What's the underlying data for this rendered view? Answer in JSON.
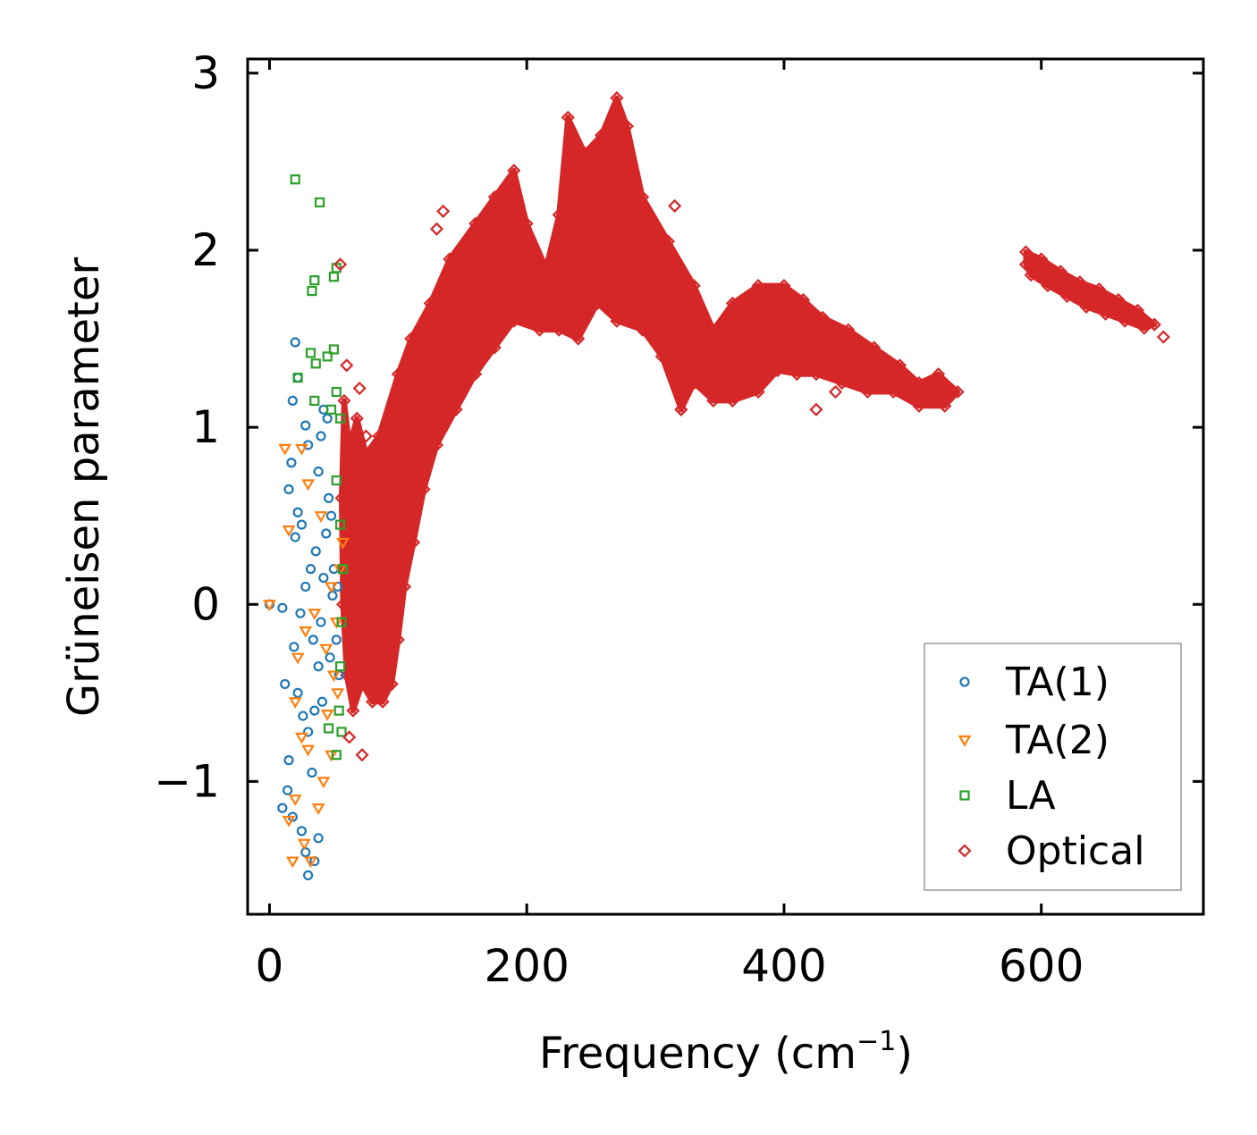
{
  "chart_data": {
    "type": "scatter",
    "xlabel": "Frequency (cm",
    "xlabel_sup": "−1",
    "xlabel_close": ")",
    "ylabel": "Grüneisen parameter",
    "xlim": [
      -17,
      726
    ],
    "ylim": [
      -1.75,
      3.08
    ],
    "x_ticks": [
      0,
      200,
      400,
      600
    ],
    "x_tick_labels": [
      "0",
      "200",
      "400",
      "600"
    ],
    "y_ticks": [
      -1,
      0,
      1,
      2,
      3
    ],
    "y_tick_labels": [
      "−1",
      "0",
      "1",
      "2",
      "3"
    ],
    "legend_position": "lower-right",
    "series": [
      {
        "name": "TA(1)",
        "label": "TA(1)",
        "marker": "circle",
        "color": "#1f77b4",
        "points": [
          [
            0,
            0
          ],
          [
            10,
            -0.02
          ],
          [
            20,
            1.48
          ],
          [
            18,
            1.15
          ],
          [
            22,
            1.28
          ],
          [
            28,
            1.01
          ],
          [
            30,
            0.9
          ],
          [
            15,
            0.65
          ],
          [
            17,
            0.8
          ],
          [
            22,
            0.52
          ],
          [
            25,
            0.45
          ],
          [
            20,
            0.38
          ],
          [
            28,
            0.1
          ],
          [
            32,
            0.2
          ],
          [
            24,
            -0.05
          ],
          [
            19,
            -0.24
          ],
          [
            22,
            -0.5
          ],
          [
            12,
            -0.45
          ],
          [
            15,
            -0.88
          ],
          [
            14,
            -1.05
          ],
          [
            10,
            -1.15
          ],
          [
            18,
            -1.2
          ],
          [
            25,
            -1.28
          ],
          [
            28,
            -1.4
          ],
          [
            35,
            -1.45
          ],
          [
            30,
            -1.53
          ],
          [
            38,
            -1.32
          ],
          [
            26,
            -0.63
          ],
          [
            30,
            -0.72
          ],
          [
            33,
            -0.95
          ],
          [
            35,
            -0.6
          ],
          [
            38,
            -0.35
          ],
          [
            40,
            -0.1
          ],
          [
            42,
            0.15
          ],
          [
            44,
            0.4
          ],
          [
            46,
            0.6
          ],
          [
            38,
            0.75
          ],
          [
            40,
            0.95
          ],
          [
            42,
            1.1
          ],
          [
            45,
            1.05
          ],
          [
            48,
            0.5
          ],
          [
            50,
            0.2
          ],
          [
            52,
            -0.2
          ],
          [
            54,
            -0.4
          ],
          [
            36,
            0.3
          ],
          [
            34,
            -0.2
          ],
          [
            41,
            -0.55
          ],
          [
            47,
            -0.3
          ],
          [
            49,
            0.05
          ],
          [
            53,
            0.1
          ]
        ]
      },
      {
        "name": "TA(2)",
        "label": "TA(2)",
        "marker": "triangle-down",
        "color": "#ff7f0e",
        "points": [
          [
            0,
            0
          ],
          [
            12,
            0.88
          ],
          [
            25,
            0.88
          ],
          [
            30,
            0.68
          ],
          [
            15,
            0.42
          ],
          [
            22,
            -0.3
          ],
          [
            20,
            -0.55
          ],
          [
            25,
            -0.75
          ],
          [
            30,
            -0.82
          ],
          [
            20,
            -1.1
          ],
          [
            15,
            -1.22
          ],
          [
            27,
            -1.35
          ],
          [
            32,
            -1.45
          ],
          [
            18,
            -1.45
          ],
          [
            38,
            -1.15
          ],
          [
            42,
            -1.0
          ],
          [
            48,
            -0.85
          ],
          [
            45,
            -0.62
          ],
          [
            50,
            -0.4
          ],
          [
            52,
            -0.1
          ],
          [
            55,
            0.2
          ],
          [
            57,
            0.35
          ],
          [
            40,
            0.5
          ],
          [
            35,
            -0.05
          ],
          [
            44,
            -0.25
          ],
          [
            28,
            -0.15
          ],
          [
            48,
            0.1
          ],
          [
            53,
            -0.5
          ]
        ]
      },
      {
        "name": "LA",
        "label": "LA",
        "marker": "square",
        "color": "#2ca02c",
        "points": [
          [
            20,
            2.4
          ],
          [
            39,
            2.27
          ],
          [
            35,
            1.83
          ],
          [
            33,
            1.77
          ],
          [
            50,
            1.85
          ],
          [
            52,
            1.9
          ],
          [
            32,
            1.42
          ],
          [
            36,
            1.36
          ],
          [
            45,
            1.4
          ],
          [
            50,
            1.44
          ],
          [
            22,
            1.28
          ],
          [
            35,
            1.15
          ],
          [
            48,
            1.1
          ],
          [
            52,
            1.2
          ],
          [
            55,
            1.05
          ],
          [
            52,
            0.7
          ],
          [
            55,
            0.45
          ],
          [
            57,
            0.2
          ],
          [
            56,
            -0.1
          ],
          [
            55,
            -0.35
          ],
          [
            54,
            -0.6
          ],
          [
            56,
            -0.72
          ],
          [
            52,
            -0.85
          ],
          [
            46,
            -0.7
          ]
        ]
      },
      {
        "name": "Optical",
        "label": "Optical",
        "marker": "diamond",
        "color": "#d62728",
        "points": [
          [
            55,
            1.92
          ],
          [
            60,
            1.35
          ],
          [
            70,
            1.22
          ],
          [
            75,
            0.95
          ],
          [
            80,
            0.6
          ],
          [
            85,
            0.25
          ],
          [
            90,
            -0.1
          ],
          [
            95,
            -0.45
          ],
          [
            62,
            -0.75
          ],
          [
            72,
            -0.85
          ],
          [
            135,
            2.22
          ],
          [
            130,
            2.12
          ],
          [
            315,
            2.25
          ],
          [
            695,
            1.51
          ],
          [
            425,
            1.1
          ],
          [
            440,
            1.2
          ],
          [
            320,
            1.1
          ]
        ],
        "region_fill": [
          [
            58,
            1.15
          ],
          [
            62,
            0.9
          ],
          [
            68,
            1.05
          ],
          [
            75,
            0.85
          ],
          [
            85,
            0.95
          ],
          [
            100,
            1.3
          ],
          [
            110,
            1.5
          ],
          [
            125,
            1.7
          ],
          [
            140,
            1.95
          ],
          [
            160,
            2.15
          ],
          [
            175,
            2.3
          ],
          [
            190,
            2.45
          ],
          [
            200,
            2.15
          ],
          [
            215,
            1.9
          ],
          [
            225,
            2.2
          ],
          [
            232,
            2.75
          ],
          [
            245,
            2.55
          ],
          [
            258,
            2.65
          ],
          [
            270,
            2.86
          ],
          [
            278,
            2.7
          ],
          [
            290,
            2.3
          ],
          [
            310,
            2.05
          ],
          [
            330,
            1.8
          ],
          [
            345,
            1.55
          ],
          [
            360,
            1.7
          ],
          [
            380,
            1.8
          ],
          [
            400,
            1.8
          ],
          [
            415,
            1.72
          ],
          [
            430,
            1.62
          ],
          [
            450,
            1.55
          ],
          [
            470,
            1.45
          ],
          [
            490,
            1.35
          ],
          [
            505,
            1.25
          ],
          [
            520,
            1.3
          ],
          [
            535,
            1.2
          ],
          [
            525,
            1.12
          ],
          [
            505,
            1.12
          ],
          [
            485,
            1.2
          ],
          [
            465,
            1.2
          ],
          [
            445,
            1.25
          ],
          [
            425,
            1.3
          ],
          [
            410,
            1.3
          ],
          [
            395,
            1.32
          ],
          [
            380,
            1.2
          ],
          [
            360,
            1.15
          ],
          [
            345,
            1.15
          ],
          [
            330,
            1.25
          ],
          [
            320,
            1.1
          ],
          [
            305,
            1.4
          ],
          [
            290,
            1.55
          ],
          [
            270,
            1.6
          ],
          [
            255,
            1.7
          ],
          [
            240,
            1.5
          ],
          [
            225,
            1.55
          ],
          [
            210,
            1.55
          ],
          [
            190,
            1.6
          ],
          [
            175,
            1.45
          ],
          [
            160,
            1.3
          ],
          [
            145,
            1.1
          ],
          [
            130,
            0.9
          ],
          [
            120,
            0.65
          ],
          [
            112,
            0.35
          ],
          [
            105,
            0.1
          ],
          [
            100,
            -0.2
          ],
          [
            95,
            -0.45
          ],
          [
            88,
            -0.55
          ],
          [
            80,
            -0.55
          ],
          [
            72,
            -0.45
          ],
          [
            65,
            -0.6
          ],
          [
            60,
            -0.4
          ],
          [
            57,
            0.0
          ],
          [
            56,
            0.6
          ]
        ],
        "tail_fill": [
          [
            588,
            1.99
          ],
          [
            600,
            1.95
          ],
          [
            615,
            1.88
          ],
          [
            630,
            1.82
          ],
          [
            645,
            1.78
          ],
          [
            660,
            1.72
          ],
          [
            675,
            1.66
          ],
          [
            688,
            1.58
          ],
          [
            680,
            1.56
          ],
          [
            665,
            1.6
          ],
          [
            650,
            1.64
          ],
          [
            635,
            1.68
          ],
          [
            620,
            1.74
          ],
          [
            605,
            1.8
          ],
          [
            592,
            1.86
          ],
          [
            588,
            1.92
          ]
        ]
      }
    ]
  }
}
